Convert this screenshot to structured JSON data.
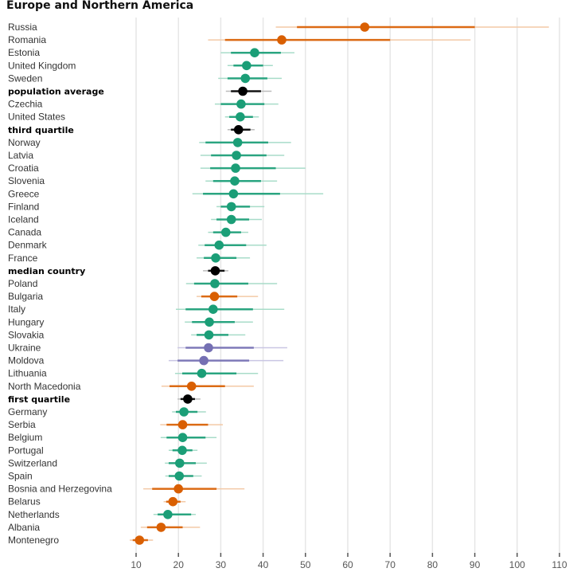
{
  "chart_data": {
    "type": "scatter",
    "title": "Europe and Northern America",
    "xlabel": "",
    "ylabel": "",
    "xlim": [
      7,
      112
    ],
    "xticks": [
      10,
      20,
      30,
      40,
      50,
      60,
      70,
      80,
      90,
      100,
      110
    ],
    "grid": true,
    "colors": {
      "green": "#1b9e77",
      "orange": "#d95f02",
      "purple": "#7570b3",
      "black": "#000000"
    },
    "rows": [
      {
        "label": "Russia",
        "value": 64,
        "inner": [
          48,
          90
        ],
        "outer": [
          43,
          107.5
        ],
        "color": "orange",
        "bold": false
      },
      {
        "label": "Romania",
        "value": 44.4,
        "inner": [
          31,
          70
        ],
        "outer": [
          27,
          89
        ],
        "color": "orange",
        "bold": false
      },
      {
        "label": "Estonia",
        "value": 38,
        "inner": [
          32.4,
          44.2
        ],
        "outer": [
          30,
          47.4
        ],
        "color": "green",
        "bold": false
      },
      {
        "label": "United Kingdom",
        "value": 36.1,
        "inner": [
          33,
          40
        ],
        "outer": [
          31.6,
          42.3
        ],
        "color": "green",
        "bold": false
      },
      {
        "label": "Sweden",
        "value": 35.8,
        "inner": [
          31.6,
          41
        ],
        "outer": [
          29.4,
          44.4
        ],
        "color": "green",
        "bold": false
      },
      {
        "label": "population average",
        "value": 35.2,
        "inner": [
          32.4,
          39.5
        ],
        "outer": [
          31.2,
          42
        ],
        "color": "black",
        "bold": true
      },
      {
        "label": "Czechia",
        "value": 34.8,
        "inner": [
          30,
          40.3
        ],
        "outer": [
          28.6,
          43.6
        ],
        "color": "green",
        "bold": false
      },
      {
        "label": "United States",
        "value": 34.6,
        "inner": [
          32,
          37.6
        ],
        "outer": [
          31,
          39
        ],
        "color": "green",
        "bold": false
      },
      {
        "label": "third quartile",
        "value": 34.2,
        "inner": [
          32.4,
          37
        ],
        "outer": [
          31.6,
          38
        ],
        "color": "black",
        "bold": true
      },
      {
        "label": "Norway",
        "value": 34,
        "inner": [
          26.4,
          41.2
        ],
        "outer": [
          24.9,
          46.6
        ],
        "color": "green",
        "bold": false
      },
      {
        "label": "Latvia",
        "value": 33.7,
        "inner": [
          27.7,
          40.8
        ],
        "outer": [
          25.2,
          45
        ],
        "color": "green",
        "bold": false
      },
      {
        "label": "Croatia",
        "value": 33.5,
        "inner": [
          27.5,
          43
        ],
        "outer": [
          25.2,
          50
        ],
        "color": "green",
        "bold": false
      },
      {
        "label": "Slovenia",
        "value": 33.3,
        "inner": [
          28.2,
          39.5
        ],
        "outer": [
          26.4,
          43.3
        ],
        "color": "green",
        "bold": false
      },
      {
        "label": "Greece",
        "value": 33,
        "inner": [
          25.8,
          44
        ],
        "outer": [
          23.3,
          54.2
        ],
        "color": "green",
        "bold": false
      },
      {
        "label": "Finland",
        "value": 32.5,
        "inner": [
          30,
          36.9
        ],
        "outer": [
          29,
          40.3
        ],
        "color": "green",
        "bold": false
      },
      {
        "label": "Iceland",
        "value": 32.5,
        "inner": [
          29,
          36.7
        ],
        "outer": [
          27.7,
          39.7
        ],
        "color": "green",
        "bold": false
      },
      {
        "label": "Canada",
        "value": 31.2,
        "inner": [
          28.2,
          34.8
        ],
        "outer": [
          27,
          36.5
        ],
        "color": "green",
        "bold": false
      },
      {
        "label": "Denmark",
        "value": 29.6,
        "inner": [
          26.2,
          36
        ],
        "outer": [
          24.7,
          40.8
        ],
        "color": "green",
        "bold": false
      },
      {
        "label": "France",
        "value": 28.8,
        "inner": [
          26,
          33.7
        ],
        "outer": [
          24.3,
          36.9
        ],
        "color": "green",
        "bold": false
      },
      {
        "label": "median country",
        "value": 28.7,
        "inner": [
          27,
          30.9
        ],
        "outer": [
          25.8,
          31.8
        ],
        "color": "black",
        "bold": true
      },
      {
        "label": "Poland",
        "value": 28.6,
        "inner": [
          23.7,
          36.5
        ],
        "outer": [
          21.8,
          43.3
        ],
        "color": "green",
        "bold": false
      },
      {
        "label": "Bulgaria",
        "value": 28.5,
        "inner": [
          25.4,
          33.9
        ],
        "outer": [
          24.3,
          38.8
        ],
        "color": "orange",
        "bold": false
      },
      {
        "label": "Italy",
        "value": 28.2,
        "inner": [
          21.7,
          37.6
        ],
        "outer": [
          19.4,
          45
        ],
        "color": "green",
        "bold": false
      },
      {
        "label": "Hungary",
        "value": 27.3,
        "inner": [
          23.2,
          33.3
        ],
        "outer": [
          21.5,
          37.6
        ],
        "color": "green",
        "bold": false
      },
      {
        "label": "Slovakia",
        "value": 27.2,
        "inner": [
          24.3,
          31.8
        ],
        "outer": [
          23,
          35.8
        ],
        "color": "green",
        "bold": false
      },
      {
        "label": "Ukraine",
        "value": 27.1,
        "inner": [
          21.7,
          37.8
        ],
        "outer": [
          19.8,
          45.7
        ],
        "color": "purple",
        "bold": false
      },
      {
        "label": "Moldova",
        "value": 26,
        "inner": [
          19.8,
          36.7
        ],
        "outer": [
          17.7,
          44.8
        ],
        "color": "purple",
        "bold": false
      },
      {
        "label": "Lithuania",
        "value": 25.5,
        "inner": [
          20.9,
          33.7
        ],
        "outer": [
          19.2,
          38.8
        ],
        "color": "green",
        "bold": false
      },
      {
        "label": "North Macedonia",
        "value": 23.1,
        "inner": [
          17.9,
          31
        ],
        "outer": [
          16,
          37.8
        ],
        "color": "orange",
        "bold": false
      },
      {
        "label": "first quartile",
        "value": 22.2,
        "inner": [
          20.5,
          23.9
        ],
        "outer": [
          19.8,
          25.2
        ],
        "color": "black",
        "bold": true
      },
      {
        "label": "Germany",
        "value": 21.3,
        "inner": [
          19.4,
          24.5
        ],
        "outer": [
          18.5,
          26.5
        ],
        "color": "green",
        "bold": false
      },
      {
        "label": "Serbia",
        "value": 21,
        "inner": [
          17.2,
          27
        ],
        "outer": [
          15.7,
          30.5
        ],
        "color": "orange",
        "bold": false
      },
      {
        "label": "Belgium",
        "value": 21,
        "inner": [
          17.2,
          26.4
        ],
        "outer": [
          15.8,
          29
        ],
        "color": "green",
        "bold": false
      },
      {
        "label": "Portugal",
        "value": 20.9,
        "inner": [
          18.6,
          23.3
        ],
        "outer": [
          17.7,
          24.5
        ],
        "color": "green",
        "bold": false
      },
      {
        "label": "Switzerland",
        "value": 20.3,
        "inner": [
          17.7,
          24.1
        ],
        "outer": [
          16.8,
          26.7
        ],
        "color": "green",
        "bold": false
      },
      {
        "label": "Spain",
        "value": 20.2,
        "inner": [
          17.7,
          23.5
        ],
        "outer": [
          16.9,
          25.5
        ],
        "color": "green",
        "bold": false
      },
      {
        "label": "Bosnia and Herzegovina",
        "value": 20,
        "inner": [
          13.8,
          29
        ],
        "outer": [
          11.7,
          35.6
        ],
        "color": "orange",
        "bold": false
      },
      {
        "label": "Belarus",
        "value": 18.7,
        "inner": [
          17.1,
          20.5
        ],
        "outer": [
          16.5,
          21.7
        ],
        "color": "orange",
        "bold": false
      },
      {
        "label": "Netherlands",
        "value": 17.5,
        "inner": [
          15.1,
          23
        ],
        "outer": [
          14.1,
          24.1
        ],
        "color": "green",
        "bold": false
      },
      {
        "label": "Albania",
        "value": 15.9,
        "inner": [
          12.6,
          21
        ],
        "outer": [
          11.1,
          25.1
        ],
        "color": "orange",
        "bold": false
      },
      {
        "label": "Montenegro",
        "value": 10.8,
        "inner": [
          9.2,
          12.8
        ],
        "outer": [
          8.5,
          14
        ],
        "color": "orange",
        "bold": false
      }
    ]
  }
}
